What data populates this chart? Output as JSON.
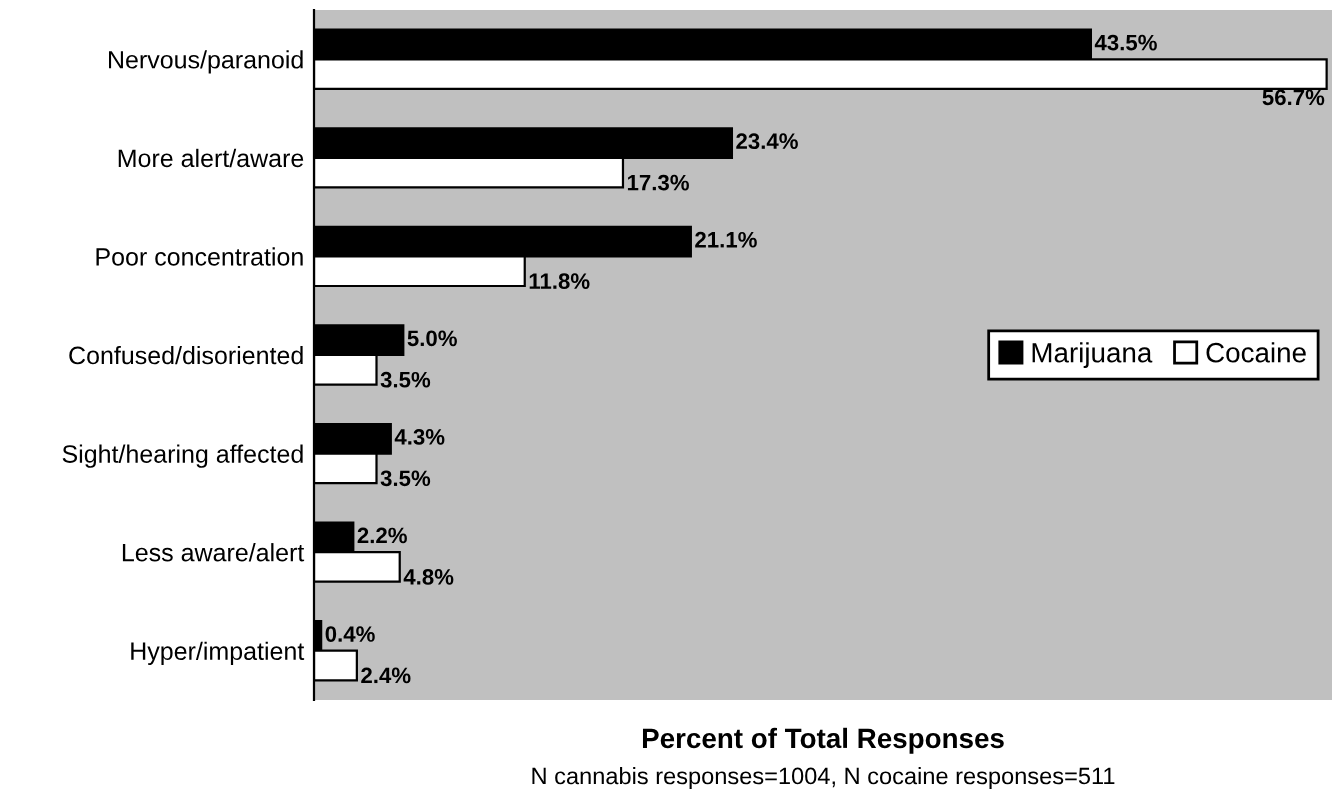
{
  "chart_data": {
    "type": "bar",
    "orientation": "horizontal",
    "categories": [
      "Nervous/paranoid",
      "More alert/aware",
      "Poor concentration",
      "Confused/disoriented",
      "Sight/hearing affected",
      "Less aware/alert",
      "Hyper/impatient"
    ],
    "series": [
      {
        "name": "Marijuana",
        "color": "#000000",
        "values": [
          43.5,
          23.4,
          21.1,
          5.0,
          4.3,
          2.2,
          0.4
        ],
        "value_labels": [
          "43.5%",
          "23.4%",
          "21.1%",
          "5.0%",
          "4.3%",
          "2.2%",
          "0.4%"
        ]
      },
      {
        "name": "Cocaine",
        "color": "#ffffff",
        "values": [
          56.7,
          17.3,
          11.8,
          3.5,
          3.5,
          4.8,
          2.4
        ],
        "value_labels": [
          "56.7%",
          "17.3%",
          "11.8%",
          "3.5%",
          "3.5%",
          "4.8%",
          "2.4%"
        ]
      }
    ],
    "xlim": [
      0,
      57
    ],
    "xlabel": "Percent of Total Responses",
    "annotations": [
      "N cannabis responses=1004, N cocaine responses=511"
    ],
    "tick_labels": "y",
    "legend": "center right",
    "grid": false
  }
}
